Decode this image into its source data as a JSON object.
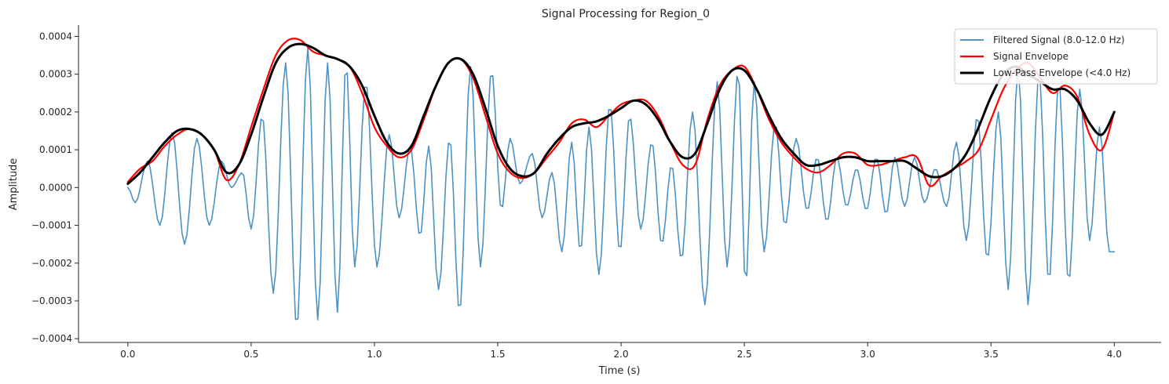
{
  "chart_data": {
    "type": "line",
    "title": "Signal Processing for Region_0",
    "xlabel": "Time (s)",
    "ylabel": "Amplitude",
    "xlim": [
      -0.2,
      4.19
    ],
    "ylim": [
      -0.00041,
      0.00043
    ],
    "x_ticks": [
      0.0,
      0.5,
      1.0,
      1.5,
      2.0,
      2.5,
      3.0,
      3.5,
      4.0
    ],
    "x_tick_labels": [
      "0.0",
      "0.5",
      "1.0",
      "1.5",
      "2.0",
      "2.5",
      "3.0",
      "3.5",
      "4.0"
    ],
    "y_ticks": [
      -0.0004,
      -0.0003,
      -0.0002,
      -0.0001,
      0.0,
      0.0001,
      0.0002,
      0.0003,
      0.0004
    ],
    "y_tick_labels": [
      "−0.0004",
      "−0.0003",
      "−0.0002",
      "−0.0001",
      "0.0000",
      "0.0001",
      "0.0002",
      "0.0003",
      "0.0004"
    ],
    "grid": false,
    "legend_position": "top-right",
    "sampling_rate_hz": 100,
    "series": [
      {
        "name": "Filtered Signal (8.0-12.0 Hz)",
        "color": "#1f77b4",
        "kind": "oscillation",
        "peak_x": [
          0.08,
          0.18,
          0.28,
          0.38,
          0.465,
          0.545,
          0.64,
          0.73,
          0.81,
          0.885,
          0.965,
          1.06,
          1.145,
          1.22,
          1.305,
          1.39,
          1.475,
          1.55,
          1.64,
          1.72,
          1.8,
          1.87,
          1.955,
          2.035,
          2.125,
          2.205,
          2.29,
          2.39,
          2.475,
          2.54,
          2.625,
          2.71,
          2.795,
          2.875,
          2.955,
          3.035,
          3.11,
          3.19,
          3.275,
          3.36,
          3.445,
          3.53,
          3.61,
          3.695,
          3.775,
          3.86,
          3.94
        ],
        "peak_y": [
          7e-05,
          0.000145,
          0.00013,
          7e-05,
          4e-05,
          0.00019,
          0.00033,
          0.00037,
          0.00033,
          0.00033,
          0.00028,
          0.00014,
          0.00011,
          0.00011,
          0.00013,
          0.00032,
          0.00031,
          0.00013,
          9e-05,
          4e-05,
          0.00012,
          0.00016,
          0.00022,
          0.00019,
          0.00012,
          6e-05,
          0.0002,
          0.00028,
          0.00031,
          0.00028,
          0.00017,
          0.00013,
          8e-05,
          8e-05,
          5e-05,
          8e-05,
          8e-05,
          8e-05,
          5e-05,
          0.00012,
          0.00019,
          0.0002,
          0.00032,
          0.0003,
          0.00028,
          0.00026,
          0.00016
        ],
        "trough_x": [
          0.03,
          0.13,
          0.23,
          0.33,
          0.42,
          0.5,
          0.59,
          0.685,
          0.77,
          0.85,
          0.92,
          1.01,
          1.1,
          1.185,
          1.26,
          1.345,
          1.43,
          1.515,
          1.59,
          1.68,
          1.76,
          1.835,
          1.91,
          1.995,
          2.08,
          2.165,
          2.245,
          2.34,
          2.43,
          2.505,
          2.58,
          2.665,
          2.755,
          2.835,
          2.915,
          2.995,
          3.075,
          3.15,
          3.23,
          3.32,
          3.4,
          3.485,
          3.57,
          3.65,
          3.735,
          3.815,
          3.9,
          3.98
        ],
        "trough_y": [
          -4e-05,
          -0.0001,
          -0.00015,
          -0.0001,
          0.0,
          -0.00011,
          -0.00028,
          -0.00037,
          -0.00035,
          -0.00033,
          -0.00021,
          -0.00021,
          -8e-05,
          -0.00013,
          -0.00027,
          -0.00033,
          -0.00021,
          -6e-05,
          1e-05,
          -8e-05,
          -0.00017,
          -0.00017,
          -0.00023,
          -0.00017,
          -0.00011,
          -0.00015,
          -0.00019,
          -0.00031,
          -0.00021,
          -0.00026,
          -0.00017,
          -0.0001,
          -6e-05,
          -9e-05,
          -5e-05,
          -6e-05,
          -7e-05,
          -5e-05,
          -4e-05,
          -5e-05,
          -0.00014,
          -0.00019,
          -0.00027,
          -0.00031,
          -0.00025,
          -0.00025,
          -0.00014,
          -0.00017
        ],
        "start_value": 0.0
      },
      {
        "name": "Signal Envelope",
        "color": "#ff0000",
        "kind": "curve",
        "x": [
          0.0,
          0.05,
          0.1,
          0.15,
          0.2,
          0.25,
          0.3,
          0.35,
          0.4,
          0.45,
          0.5,
          0.55,
          0.6,
          0.65,
          0.7,
          0.75,
          0.8,
          0.85,
          0.9,
          0.95,
          1.0,
          1.05,
          1.1,
          1.15,
          1.2,
          1.25,
          1.3,
          1.35,
          1.4,
          1.45,
          1.5,
          1.55,
          1.6,
          1.65,
          1.7,
          1.75,
          1.8,
          1.85,
          1.9,
          1.95,
          2.0,
          2.05,
          2.1,
          2.15,
          2.2,
          2.25,
          2.3,
          2.35,
          2.4,
          2.45,
          2.5,
          2.55,
          2.6,
          2.65,
          2.7,
          2.75,
          2.8,
          2.85,
          2.9,
          2.95,
          3.0,
          3.05,
          3.1,
          3.15,
          3.2,
          3.25,
          3.3,
          3.35,
          3.4,
          3.45,
          3.5,
          3.55,
          3.6,
          3.65,
          3.7,
          3.75,
          3.8,
          3.85,
          3.9,
          3.95,
          4.0
        ],
        "y": [
          1.5e-05,
          5e-05,
          7e-05,
          0.00011,
          0.00014,
          0.000155,
          0.00014,
          0.0001,
          2e-05,
          6e-05,
          0.00016,
          0.00026,
          0.00035,
          0.00039,
          0.00039,
          0.00036,
          0.00035,
          0.00034,
          0.00032,
          0.00025,
          0.00016,
          0.00011,
          8e-05,
          0.0001,
          0.00018,
          0.00027,
          0.00033,
          0.00034,
          0.00029,
          0.00019,
          9e-05,
          4e-05,
          2.5e-05,
          4e-05,
          8e-05,
          0.00012,
          0.00017,
          0.00018,
          0.00016,
          0.00019,
          0.00022,
          0.00023,
          0.00023,
          0.00019,
          0.00012,
          6e-05,
          6e-05,
          0.00018,
          0.00027,
          0.00031,
          0.00032,
          0.00026,
          0.00018,
          0.00012,
          8e-05,
          5e-05,
          4e-05,
          6e-05,
          9e-05,
          9e-05,
          6e-05,
          6e-05,
          7e-05,
          8e-05,
          8e-05,
          5e-06,
          3e-05,
          5e-05,
          7e-05,
          0.0001,
          0.00018,
          0.00026,
          0.00031,
          0.00033,
          0.00029,
          0.00025,
          0.00027,
          0.00024,
          0.00014,
          0.0001,
          0.0002
        ]
      },
      {
        "name": "Low-Pass Envelope (<4.0 Hz)",
        "color": "#000000",
        "kind": "curve",
        "x": [
          0.0,
          0.05,
          0.1,
          0.15,
          0.2,
          0.25,
          0.3,
          0.35,
          0.4,
          0.45,
          0.5,
          0.55,
          0.6,
          0.65,
          0.7,
          0.75,
          0.8,
          0.85,
          0.9,
          0.95,
          1.0,
          1.05,
          1.1,
          1.15,
          1.2,
          1.25,
          1.3,
          1.35,
          1.4,
          1.45,
          1.5,
          1.55,
          1.6,
          1.65,
          1.7,
          1.75,
          1.8,
          1.85,
          1.9,
          1.95,
          2.0,
          2.05,
          2.1,
          2.15,
          2.2,
          2.25,
          2.3,
          2.35,
          2.4,
          2.45,
          2.5,
          2.55,
          2.6,
          2.65,
          2.7,
          2.75,
          2.8,
          2.85,
          2.9,
          2.95,
          3.0,
          3.05,
          3.1,
          3.15,
          3.2,
          3.25,
          3.3,
          3.35,
          3.4,
          3.45,
          3.5,
          3.55,
          3.6,
          3.65,
          3.7,
          3.75,
          3.8,
          3.85,
          3.9,
          3.95,
          4.0
        ],
        "y": [
          1e-05,
          4e-05,
          8e-05,
          0.00012,
          0.00015,
          0.000155,
          0.00014,
          0.0001,
          4e-05,
          6e-05,
          0.00014,
          0.00024,
          0.00033,
          0.00037,
          0.00038,
          0.00037,
          0.00035,
          0.00034,
          0.00032,
          0.00027,
          0.00019,
          0.00012,
          9e-05,
          0.00011,
          0.00019,
          0.00027,
          0.00033,
          0.00034,
          0.0003,
          0.00021,
          0.00011,
          5e-05,
          3e-05,
          4e-05,
          9e-05,
          0.00013,
          0.00016,
          0.00017,
          0.000175,
          0.00019,
          0.00021,
          0.00023,
          0.00022,
          0.00018,
          0.00012,
          8e-05,
          9e-05,
          0.00017,
          0.00026,
          0.00031,
          0.00031,
          0.00026,
          0.00019,
          0.00013,
          9e-05,
          6e-05,
          6e-05,
          7e-05,
          8e-05,
          8e-05,
          7e-05,
          7e-05,
          7e-05,
          7e-05,
          5e-05,
          3e-05,
          3e-05,
          5e-05,
          9e-05,
          0.00016,
          0.00024,
          0.0003,
          0.00032,
          0.0003,
          0.00028,
          0.00026,
          0.00026,
          0.00023,
          0.00017,
          0.00014,
          0.0002
        ]
      }
    ]
  }
}
